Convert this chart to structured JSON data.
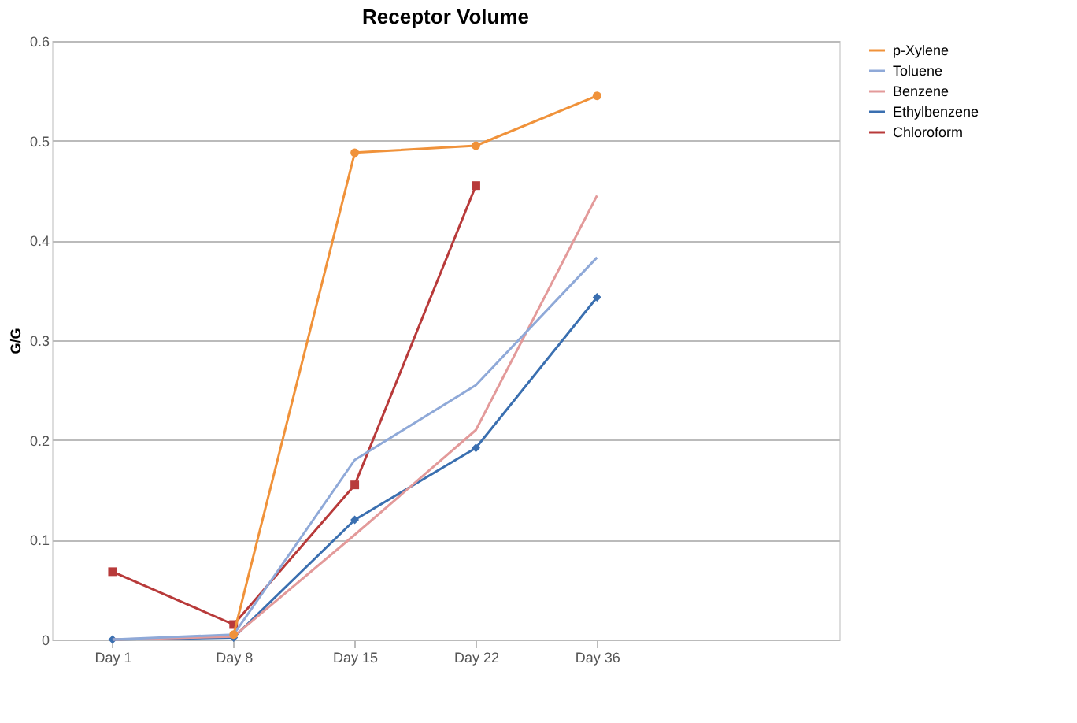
{
  "chart_data": {
    "type": "line",
    "title": "Receptor Volume",
    "ylabel": "G/G",
    "categories": [
      "Day 1",
      "Day 8",
      "Day 15",
      "Day 22",
      "Day 36"
    ],
    "series": [
      {
        "name": "p-Xylene",
        "color": "#f0923a",
        "marker": "circle",
        "values": [
          null,
          0.005,
          0.488,
          0.495,
          0.545
        ]
      },
      {
        "name": "Toluene",
        "color": "#8fa9d8",
        "marker": "none",
        "values": [
          0,
          0.005,
          0.18,
          0.255,
          0.383
        ]
      },
      {
        "name": "Benzene",
        "color": "#e39a9a",
        "marker": "none",
        "values": [
          0,
          0.003,
          0.105,
          0.21,
          0.445
        ]
      },
      {
        "name": "Ethylbenzene",
        "color": "#3a6fb0",
        "marker": "diamond",
        "values": [
          0,
          0.002,
          0.12,
          0.192,
          0.343
        ]
      },
      {
        "name": "Chloroform",
        "color": "#b83a3a",
        "marker": "square",
        "values": [
          0.068,
          0.015,
          0.155,
          0.455,
          null
        ]
      }
    ],
    "ylim": [
      0,
      0.6
    ],
    "yticks": [
      0,
      0.1,
      0.2,
      0.3,
      0.4,
      0.5,
      0.6
    ],
    "grid": "y",
    "legend": "right"
  }
}
